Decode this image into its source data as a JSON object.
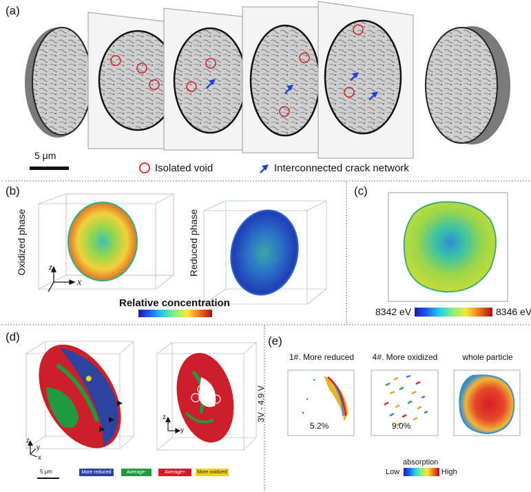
{
  "panels": {
    "a": {
      "label": "(a)",
      "scale_bar": "5 μm",
      "legend": {
        "void": "Isolated void",
        "crack": "Interconnected crack network"
      }
    },
    "b": {
      "label": "(b)",
      "oxidized_label": "Oxidized phase",
      "reduced_label": "Reduced phase",
      "axis_z": "z",
      "axis_x": "x",
      "colorbar_title": "Relative concentration"
    },
    "c": {
      "label": "(c)",
      "energy_low": "8342 eV",
      "energy_high": "8346 eV"
    },
    "d": {
      "label": "(d)",
      "scale_bar": "5 μm",
      "axes_left": {
        "z": "z",
        "y": "y",
        "x": "x"
      },
      "axes_right": {
        "z": "z",
        "y": "y"
      },
      "legend": [
        "More reduced",
        "Average-",
        "Average+",
        "More oxidized"
      ],
      "legend_colors": [
        "#2d43a0",
        "#1f9a3e",
        "#cc1f2a",
        "#f2d21b"
      ]
    },
    "e": {
      "label": "(e)",
      "voltage_label": "3V - 4.9 V",
      "columns": [
        {
          "title": "1#. More reduced",
          "percent": "5.2%"
        },
        {
          "title": "4#. More oxidized",
          "percent": "9.0%"
        },
        {
          "title": "whole particle",
          "percent": ""
        }
      ],
      "colorbar_title": "absorption",
      "colorbar_low": "Low",
      "colorbar_high": "High"
    }
  }
}
